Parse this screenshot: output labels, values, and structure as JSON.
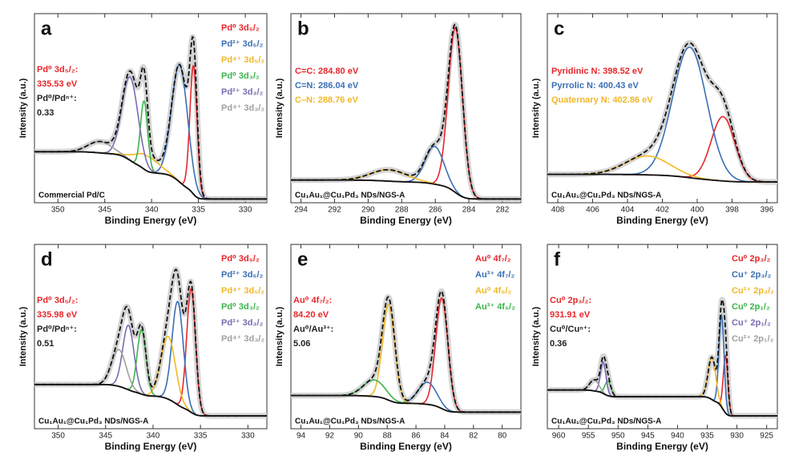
{
  "chart_data": [
    {
      "type": "xps",
      "letter": "a",
      "xlabel": "Binding Energy (eV)",
      "ylabel": "Intensity (a.u.)",
      "sample": "Commercial Pd/C",
      "xlim": [
        352.5,
        327.7
      ],
      "xticks": [
        350,
        345,
        340,
        335,
        330
      ],
      "ylim": [
        0,
        100
      ],
      "background": [
        27,
        2
      ],
      "legend": "top-right",
      "annotations": [
        {
          "text": "Pd⁰ 3d₅/₂:",
          "color": "#e8262b"
        },
        {
          "text": "335.53 eV",
          "color": "#e8262b"
        },
        {
          "text": "Pd⁰/Pdⁿ⁺:",
          "color": "#222222"
        },
        {
          "text": "0.33",
          "color": "#222222"
        }
      ],
      "series": [
        {
          "name": "Pd⁰ 3d₅/₂",
          "color": "#e8262b",
          "center": 335.53,
          "height": 68,
          "fwhm": 0.9
        },
        {
          "name": "Pd²⁺ 3d₅/₂",
          "color": "#3a6fb5",
          "center": 337.0,
          "height": 62,
          "fwhm": 2.0
        },
        {
          "name": "Pd⁴⁺ 3d₅/₂",
          "color": "#f2b825",
          "center": 340.5,
          "height": 8,
          "fwhm": 3.0
        },
        {
          "name": "Pd⁰ 3d₃/₂",
          "color": "#3cb44b",
          "center": 340.8,
          "height": 36,
          "fwhm": 0.9
        },
        {
          "name": "Pd²⁺ 3d₃/₂",
          "color": "#7b6bb0",
          "center": 342.3,
          "height": 44,
          "fwhm": 2.0
        },
        {
          "name": "Pd⁴⁺ 3d₃/₂",
          "color": "#a0a0a0",
          "center": 345.5,
          "height": 6,
          "fwhm": 3.0
        }
      ]
    },
    {
      "type": "xps",
      "letter": "b",
      "xlabel": "Binding Energy (eV)",
      "ylabel": "Intensity (a.u.)",
      "sample": "Cu₁Au₁@Cu₁Pd₃ NDs/NGS-A",
      "xlim": [
        294.6,
        280.9
      ],
      "xticks": [
        294,
        292,
        290,
        288,
        286,
        284,
        282
      ],
      "ylim": [
        0,
        100
      ],
      "background": [
        12,
        2
      ],
      "legend": "top-left",
      "annotations": [],
      "series": [
        {
          "name": "C=C: 284.80 eV",
          "color": "#e8262b",
          "center": 284.8,
          "height": 87,
          "fwhm": 1.0
        },
        {
          "name": "C=N: 286.04 eV",
          "color": "#3a6fb5",
          "center": 286.04,
          "height": 20,
          "fwhm": 1.3
        },
        {
          "name": "C–N: 288.76 eV",
          "color": "#f2b825",
          "center": 288.76,
          "height": 6,
          "fwhm": 2.5
        }
      ]
    },
    {
      "type": "xps",
      "letter": "c",
      "xlabel": "Binding Energy (eV)",
      "ylabel": "Intensity (a.u.)",
      "sample": "Cu₁Au₁@Cu₁Pd₃ NDs/NGS-A",
      "xlim": [
        408.6,
        395.4
      ],
      "xticks": [
        408,
        406,
        404,
        402,
        400,
        398,
        396
      ],
      "ylim": [
        0,
        100
      ],
      "background": [
        15,
        11
      ],
      "legend": "top-left",
      "annotations": [],
      "series": [
        {
          "name": "Pyridinic N: 398.52 eV",
          "color": "#e8262b",
          "center": 398.52,
          "height": 34,
          "fwhm": 1.6
        },
        {
          "name": "Pyrrolic N: 400.43 eV",
          "color": "#3a6fb5",
          "center": 400.43,
          "height": 69,
          "fwhm": 2.3
        },
        {
          "name": "Quaternary N: 402.86 eV",
          "color": "#f2b825",
          "center": 402.86,
          "height": 10,
          "fwhm": 3.0
        }
      ]
    },
    {
      "type": "xps",
      "letter": "d",
      "xlabel": "Binding Energy (eV)",
      "ylabel": "Intensity (a.u.)",
      "sample": "Cu₁Au₁@Cu₁Pd₃ NDs/NGS-A",
      "xlim": [
        352.5,
        328
      ],
      "xticks": [
        350,
        345,
        340,
        335,
        330
      ],
      "ylim": [
        0,
        100
      ],
      "background": [
        24,
        7
      ],
      "legend": "top-right",
      "annotations": [
        {
          "text": "Pd⁰ 3d₅/₂:",
          "color": "#e8262b"
        },
        {
          "text": "335.98 eV",
          "color": "#e8262b"
        },
        {
          "text": "Pd⁰/Pdⁿ⁺:",
          "color": "#222222"
        },
        {
          "text": "0.51",
          "color": "#222222"
        }
      ],
      "series": [
        {
          "name": "Pd⁰ 3d₅/₂",
          "color": "#e8262b",
          "center": 335.98,
          "height": 67,
          "fwhm": 1.1
        },
        {
          "name": "Pd²⁺ 3d₅/₂",
          "color": "#3a6fb5",
          "center": 337.4,
          "height": 56,
          "fwhm": 1.4
        },
        {
          "name": "Pd⁴⁺ 3d₅/₂",
          "color": "#f2b825",
          "center": 338.4,
          "height": 34,
          "fwhm": 1.8
        },
        {
          "name": "Pd⁰ 3d₃/₂",
          "color": "#3cb44b",
          "center": 341.2,
          "height": 35,
          "fwhm": 1.1
        },
        {
          "name": "Pd²⁺ 3d₃/₂",
          "color": "#7b6bb0",
          "center": 342.6,
          "height": 35,
          "fwhm": 1.4
        },
        {
          "name": "Pd⁴⁺ 3d₃/₂",
          "color": "#a0a0a0",
          "center": 343.6,
          "height": 20,
          "fwhm": 1.8
        }
      ]
    },
    {
      "type": "xps",
      "letter": "e",
      "xlabel": "Binding Energy (eV)",
      "ylabel": "Intensity (a.u.)",
      "sample": "Cu₁Au₁@Cu₁Pd₃ NDs/NGS-A",
      "xlim": [
        94.7,
        78.7
      ],
      "xticks": [
        94,
        92,
        90,
        88,
        86,
        84,
        82,
        80
      ],
      "ylim": [
        0,
        100
      ],
      "background": [
        18,
        9
      ],
      "legend": "top-right",
      "annotations": [
        {
          "text": "Au⁰ 4f₇/₂:",
          "color": "#e8262b"
        },
        {
          "text": "84.20 eV",
          "color": "#e8262b"
        },
        {
          "text": "Au⁰/Au³⁺:",
          "color": "#222222"
        },
        {
          "text": "5.06",
          "color": "#222222"
        }
      ],
      "series": [
        {
          "name": "Au⁰ 4f₇/₂",
          "color": "#e8262b",
          "center": 84.2,
          "height": 60,
          "fwhm": 1.0
        },
        {
          "name": "Au³⁺ 4f₇/₂",
          "color": "#3a6fb5",
          "center": 85.2,
          "height": 12,
          "fwhm": 1.5
        },
        {
          "name": "Au⁰ 4f₅/₂",
          "color": "#f2b825",
          "center": 87.9,
          "height": 52,
          "fwhm": 1.0
        },
        {
          "name": "Au³⁺ 4f₅/₂",
          "color": "#3cb44b",
          "center": 88.9,
          "height": 9,
          "fwhm": 1.8
        }
      ]
    },
    {
      "type": "xps",
      "letter": "f",
      "xlabel": "Binding Energy (eV)",
      "ylabel": "Intensity (a.u.)",
      "sample": "Cu₁Au₁@Cu₁Pd₃ NDs/NGS-A",
      "xlim": [
        961.9,
        923.2
      ],
      "xticks": [
        960,
        955,
        950,
        945,
        940,
        935,
        930,
        925
      ],
      "ylim": [
        0,
        100
      ],
      "background": [
        21,
        7
      ],
      "legend": "top-right",
      "annotations": [
        {
          "text": "Cu⁰ 2p₃/₂:",
          "color": "#e8262b"
        },
        {
          "text": "931.91 eV",
          "color": "#e8262b"
        },
        {
          "text": "Cu⁰/Cuⁿ⁺:",
          "color": "#222222"
        },
        {
          "text": "0.36",
          "color": "#222222"
        }
      ],
      "series": [
        {
          "name": "Cu⁰ 2p₃/₂",
          "color": "#e8262b",
          "center": 931.91,
          "height": 31,
          "fwhm": 0.9
        },
        {
          "name": "Cu⁺ 2p₃/₂",
          "color": "#3a6fb5",
          "center": 932.6,
          "height": 50,
          "fwhm": 1.0
        },
        {
          "name": "Cu²⁺ 2p₃/₂",
          "color": "#f2b825",
          "center": 934.2,
          "height": 23,
          "fwhm": 1.5
        },
        {
          "name": "Cu⁰ 2p₁/₂",
          "color": "#3cb44b",
          "center": 951.7,
          "height": 8,
          "fwhm": 1.2
        },
        {
          "name": "Cu⁺ 2p₁/₂",
          "color": "#7b6bb0",
          "center": 952.5,
          "height": 17,
          "fwhm": 1.1
        },
        {
          "name": "Cu²⁺ 2p₁/₂",
          "color": "#a0a0a0",
          "center": 954.0,
          "height": 6,
          "fwhm": 1.8
        }
      ]
    }
  ]
}
